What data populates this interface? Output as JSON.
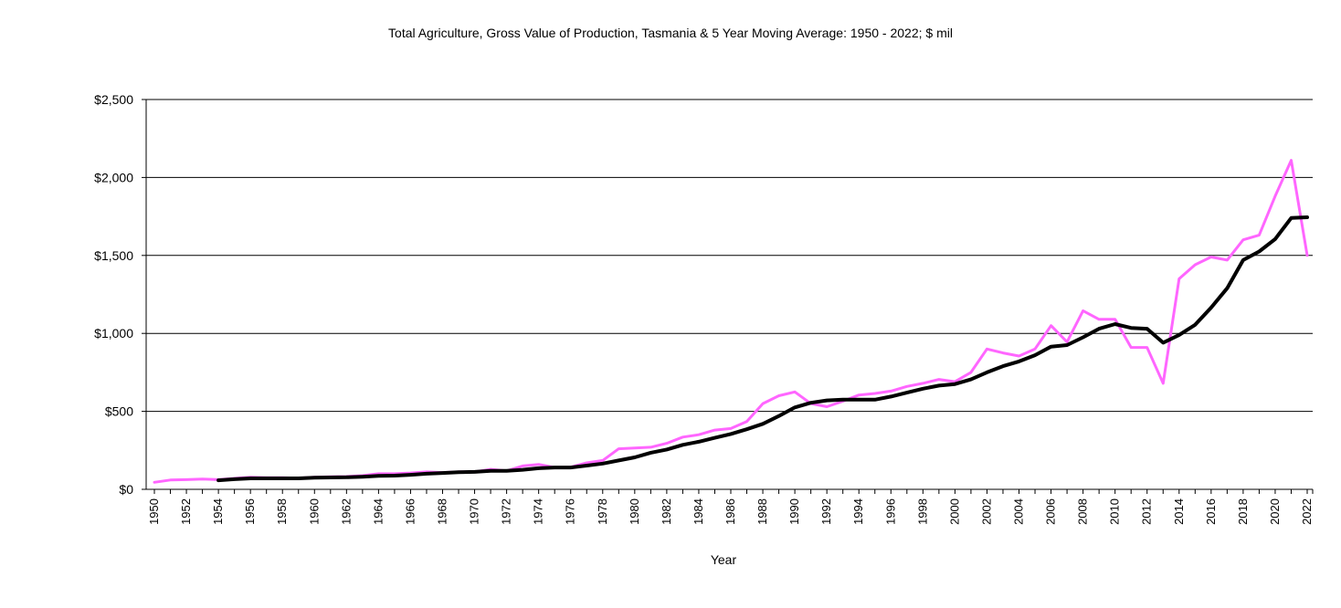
{
  "chart_data": {
    "type": "line",
    "title": "Total Agriculture, Gross Value of Production, Tasmania & 5 Year Moving Average: 1950 - 2022; $ mil",
    "xlabel": "Year",
    "ylabel": "",
    "ylim": [
      0,
      2500
    ],
    "y_ticks": [
      0,
      500,
      1000,
      1500,
      2000,
      2500
    ],
    "y_tick_labels": [
      "$0",
      "$500",
      "$1,000",
      "$1,500",
      "$2,000",
      "$2,500"
    ],
    "xlim": [
      1950,
      2022
    ],
    "x_tick_labels": [
      "1950",
      "1952",
      "1954",
      "1956",
      "1958",
      "1960",
      "1962",
      "1964",
      "1966",
      "1968",
      "1970",
      "1972",
      "1974",
      "1976",
      "1978",
      "1980",
      "1982",
      "1984",
      "1986",
      "1988",
      "1990",
      "1992",
      "1994",
      "1996",
      "1998",
      "2000",
      "2002",
      "2004",
      "2006",
      "2008",
      "2010",
      "2012",
      "2014",
      "2016",
      "2018",
      "2020",
      "2022"
    ],
    "grid": "horizontal",
    "legend": "none",
    "series": [
      {
        "name": "Total Agriculture, Gross Value of Production",
        "color": "#ff66ff",
        "x": [
          1950,
          1951,
          1952,
          1953,
          1954,
          1955,
          1956,
          1957,
          1958,
          1959,
          1960,
          1961,
          1962,
          1963,
          1964,
          1965,
          1966,
          1967,
          1968,
          1969,
          1970,
          1971,
          1972,
          1973,
          1974,
          1975,
          1976,
          1977,
          1978,
          1979,
          1980,
          1981,
          1982,
          1983,
          1984,
          1985,
          1986,
          1987,
          1988,
          1989,
          1990,
          1991,
          1992,
          1993,
          1994,
          1995,
          1996,
          1997,
          1998,
          1999,
          2000,
          2001,
          2002,
          2003,
          2004,
          2005,
          2006,
          2007,
          2008,
          2009,
          2010,
          2011,
          2012,
          2013,
          2014,
          2015,
          2016,
          2017,
          2018,
          2019,
          2020,
          2021,
          2022
        ],
        "values": [
          45,
          60,
          62,
          66,
          62,
          70,
          78,
          75,
          75,
          72,
          78,
          80,
          82,
          88,
          100,
          100,
          105,
          112,
          108,
          112,
          112,
          128,
          118,
          150,
          160,
          140,
          142,
          170,
          185,
          260,
          265,
          270,
          295,
          335,
          350,
          380,
          390,
          435,
          550,
          600,
          625,
          550,
          530,
          565,
          605,
          615,
          630,
          660,
          680,
          705,
          690,
          750,
          900,
          875,
          855,
          900,
          1050,
          945,
          1145,
          1090,
          1090,
          910,
          910,
          680,
          1350,
          1440,
          1490,
          1470,
          1600,
          1630,
          1880,
          2110,
          1500
        ]
      },
      {
        "name": "5 Year Moving Average",
        "color": "#000000",
        "x": [
          1954,
          1955,
          1956,
          1957,
          1958,
          1959,
          1960,
          1961,
          1962,
          1963,
          1964,
          1965,
          1966,
          1967,
          1968,
          1969,
          1970,
          1971,
          1972,
          1973,
          1974,
          1975,
          1976,
          1977,
          1978,
          1979,
          1980,
          1981,
          1982,
          1983,
          1984,
          1985,
          1986,
          1987,
          1988,
          1989,
          1990,
          1991,
          1992,
          1993,
          1994,
          1995,
          1996,
          1997,
          1998,
          1999,
          2000,
          2001,
          2002,
          2003,
          2004,
          2005,
          2006,
          2007,
          2008,
          2009,
          2010,
          2011,
          2012,
          2013,
          2014,
          2015,
          2016,
          2017,
          2018,
          2019,
          2020,
          2021,
          2022
        ],
        "values": [
          58,
          65,
          70,
          70,
          70,
          70,
          75,
          76,
          77,
          81,
          86,
          88,
          93,
          100,
          105,
          110,
          112,
          118,
          118,
          125,
          135,
          140,
          140,
          152,
          165,
          185,
          205,
          235,
          255,
          285,
          305,
          330,
          355,
          385,
          420,
          470,
          525,
          555,
          570,
          575,
          575,
          575,
          595,
          620,
          645,
          665,
          675,
          705,
          750,
          790,
          820,
          860,
          915,
          925,
          975,
          1030,
          1060,
          1035,
          1030,
          940,
          990,
          1055,
          1165,
          1290,
          1470,
          1525,
          1605,
          1740,
          1745
        ]
      }
    ]
  }
}
